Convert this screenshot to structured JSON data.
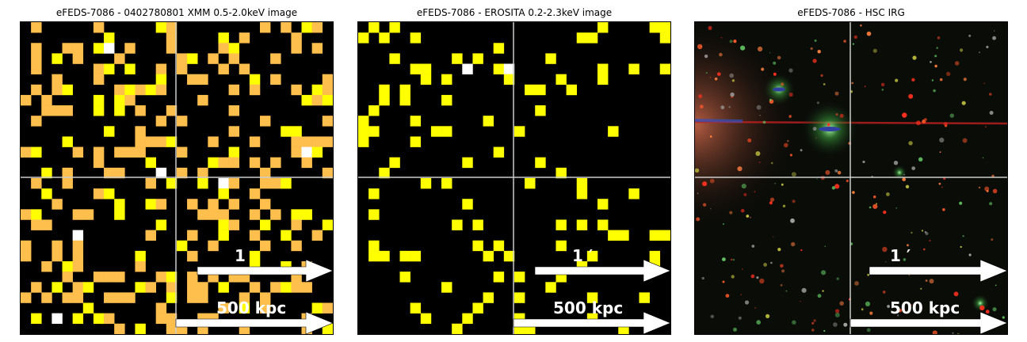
{
  "panels": [
    {
      "title": "eFEDS-7086 - 0402780801 XMM 0.5-2.0keV image",
      "scale_arcmin_label": "1",
      "scale_kpc_label": "500 kpc",
      "image": "binned X-ray counts map (orange/yellow/white pixels on black)",
      "colors": {
        "low": "#ffbf4d",
        "mid": "#ffff00",
        "high": "#ffffff",
        "background": "#000000"
      }
    },
    {
      "title": "eFEDS-7086 -  EROSITA 0.2-2.3keV image",
      "scale_arcmin_label": "1 ′",
      "scale_kpc_label": "500 kpc",
      "image": "binned X-ray counts map (yellow/white pixels on black)",
      "colors": {
        "mid": "#ffff00",
        "high": "#ffffff",
        "background": "#000000"
      }
    },
    {
      "title": "eFEDS-7086 - HSC IRG",
      "scale_arcmin_label": "1 ′",
      "scale_kpc_label": "500 kpc",
      "image": "optical color composite (dark field with red/green/orange sources)",
      "colors": {
        "background": "#0a0c08"
      }
    }
  ]
}
